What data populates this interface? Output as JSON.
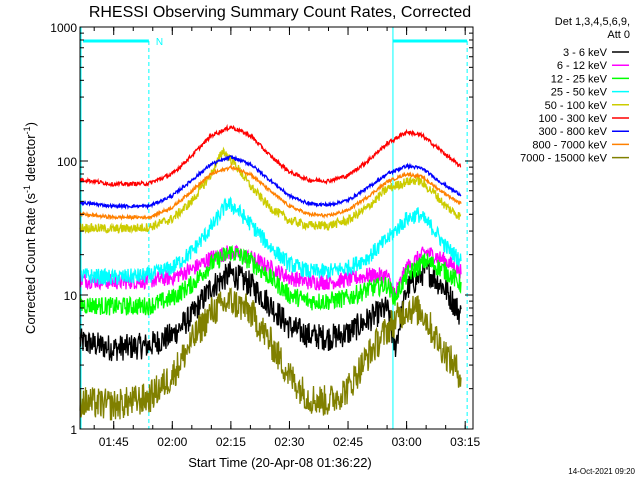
{
  "chart_data": {
    "type": "line",
    "title": "RHESSI Observing Summary Count Rates, Corrected",
    "xlabel": "Start Time (20-Apr-08 01:36:22)",
    "ylabel": "Corrected Count Rate (s",
    "ylabel_sup1": "-1",
    "ylabel_mid": " detector",
    "ylabel_sup2": "-1",
    "ylabel_end": ")",
    "yscale": "log",
    "ylim": [
      1,
      1000
    ],
    "y_ticks": [
      {
        "v": 1,
        "label": "1"
      },
      {
        "v": 10,
        "label": "10"
      },
      {
        "v": 100,
        "label": "100"
      },
      {
        "v": 1000,
        "label": "1000"
      }
    ],
    "xlim": [
      "01:36:22",
      "03:17:00"
    ],
    "x_ticks": [
      "01:45",
      "02:00",
      "02:15",
      "02:30",
      "02:45",
      "03:00",
      "03:15"
    ],
    "detectors_label": "Det 1,3,4,5,6,9,",
    "attenuator_label": "Att 0",
    "night_markers": [
      {
        "start": "01:36:22",
        "end": "01:54:00",
        "label": "N"
      }
    ],
    "other_intervals": [
      {
        "start": "02:56:30",
        "end": "03:15:30"
      }
    ],
    "footer_timestamp": "14-Oct-2021 09:20",
    "grid": false,
    "series": [
      {
        "name": "3 - 6 keV",
        "color": "#000000",
        "points": [
          [
            "01:36:22",
            4.5
          ],
          [
            "01:45",
            4.0
          ],
          [
            "01:54",
            4.2
          ],
          [
            "02:00",
            5.0
          ],
          [
            "02:05",
            7.0
          ],
          [
            "02:10",
            11.5
          ],
          [
            "02:15",
            14.5
          ],
          [
            "02:20",
            12.0
          ],
          [
            "02:25",
            8.5
          ],
          [
            "02:30",
            5.8
          ],
          [
            "02:35",
            5.0
          ],
          [
            "02:40",
            4.8
          ],
          [
            "02:45",
            5.2
          ],
          [
            "02:50",
            6.5
          ],
          [
            "02:55",
            8.0
          ],
          [
            "02:57",
            4.0
          ],
          [
            "03:00",
            11.0
          ],
          [
            "03:05",
            15.5
          ],
          [
            "03:10",
            11.0
          ],
          [
            "03:14",
            7.0
          ]
        ]
      },
      {
        "name": "6 - 12 keV",
        "color": "#ff00ff",
        "points": [
          [
            "01:36:22",
            13
          ],
          [
            "01:45",
            12.5
          ],
          [
            "01:54",
            12.8
          ],
          [
            "02:00",
            13.5
          ],
          [
            "02:05",
            15.5
          ],
          [
            "02:10",
            19
          ],
          [
            "02:15",
            21
          ],
          [
            "02:20",
            19
          ],
          [
            "02:25",
            16
          ],
          [
            "02:30",
            13.5
          ],
          [
            "02:35",
            12.5
          ],
          [
            "02:40",
            12.5
          ],
          [
            "02:45",
            13
          ],
          [
            "02:50",
            14
          ],
          [
            "02:55",
            14
          ],
          [
            "02:57",
            10
          ],
          [
            "03:00",
            16
          ],
          [
            "03:05",
            21
          ],
          [
            "03:10",
            18
          ],
          [
            "03:14",
            15
          ]
        ]
      },
      {
        "name": "12 - 25 keV",
        "color": "#00ff00",
        "points": [
          [
            "01:36:22",
            8.5
          ],
          [
            "01:45",
            8.2
          ],
          [
            "01:54",
            8.3
          ],
          [
            "02:00",
            9.5
          ],
          [
            "02:05",
            12
          ],
          [
            "02:10",
            17
          ],
          [
            "02:15",
            21
          ],
          [
            "02:20",
            18
          ],
          [
            "02:25",
            13.5
          ],
          [
            "02:30",
            10
          ],
          [
            "02:35",
            9
          ],
          [
            "02:40",
            9
          ],
          [
            "02:45",
            9.5
          ],
          [
            "02:50",
            11
          ],
          [
            "02:55",
            12
          ],
          [
            "02:57",
            9.5
          ],
          [
            "03:00",
            14
          ],
          [
            "03:05",
            18
          ],
          [
            "03:10",
            15
          ],
          [
            "03:14",
            12
          ]
        ]
      },
      {
        "name": "25 - 50 keV",
        "color": "#00ffff",
        "points": [
          [
            "01:36:22",
            14
          ],
          [
            "01:45",
            13.5
          ],
          [
            "01:54",
            14
          ],
          [
            "02:00",
            16
          ],
          [
            "02:05",
            21
          ],
          [
            "02:10",
            32
          ],
          [
            "02:14",
            48
          ],
          [
            "02:16",
            45
          ],
          [
            "02:20",
            34
          ],
          [
            "02:25",
            23
          ],
          [
            "02:30",
            17
          ],
          [
            "02:35",
            15
          ],
          [
            "02:40",
            15
          ],
          [
            "02:45",
            16
          ],
          [
            "02:50",
            19
          ],
          [
            "02:55",
            26
          ],
          [
            "03:00",
            37
          ],
          [
            "03:03",
            40
          ],
          [
            "03:07",
            31
          ],
          [
            "03:10",
            23
          ],
          [
            "03:14",
            18
          ]
        ]
      },
      {
        "name": "50 - 100 keV",
        "color": "#cccc00",
        "points": [
          [
            "01:36:22",
            32
          ],
          [
            "01:45",
            31
          ],
          [
            "01:54",
            32
          ],
          [
            "02:00",
            37
          ],
          [
            "02:05",
            50
          ],
          [
            "02:10",
            80
          ],
          [
            "02:13",
            120
          ],
          [
            "02:16",
            95
          ],
          [
            "02:20",
            65
          ],
          [
            "02:25",
            45
          ],
          [
            "02:30",
            36
          ],
          [
            "02:35",
            33
          ],
          [
            "02:40",
            33
          ],
          [
            "02:45",
            36
          ],
          [
            "02:50",
            45
          ],
          [
            "02:55",
            62
          ],
          [
            "03:00",
            70
          ],
          [
            "03:03",
            72
          ],
          [
            "03:07",
            58
          ],
          [
            "03:10",
            46
          ],
          [
            "03:14",
            38
          ]
        ]
      },
      {
        "name": "100 - 300 keV",
        "color": "#ff0000",
        "points": [
          [
            "01:36:22",
            73
          ],
          [
            "01:45",
            67
          ],
          [
            "01:54",
            68
          ],
          [
            "02:00",
            80
          ],
          [
            "02:05",
            110
          ],
          [
            "02:10",
            155
          ],
          [
            "02:15",
            180
          ],
          [
            "02:20",
            155
          ],
          [
            "02:25",
            110
          ],
          [
            "02:30",
            83
          ],
          [
            "02:35",
            72
          ],
          [
            "02:40",
            71
          ],
          [
            "02:45",
            78
          ],
          [
            "02:50",
            100
          ],
          [
            "02:55",
            135
          ],
          [
            "03:00",
            165
          ],
          [
            "03:04",
            155
          ],
          [
            "03:08",
            125
          ],
          [
            "03:12",
            100
          ],
          [
            "03:14",
            90
          ]
        ]
      },
      {
        "name": "300 - 800 keV",
        "color": "#0000ff",
        "points": [
          [
            "01:36:22",
            49
          ],
          [
            "01:45",
            46
          ],
          [
            "01:54",
            46
          ],
          [
            "02:00",
            55
          ],
          [
            "02:05",
            72
          ],
          [
            "02:10",
            95
          ],
          [
            "02:15",
            107
          ],
          [
            "02:20",
            95
          ],
          [
            "02:25",
            72
          ],
          [
            "02:30",
            55
          ],
          [
            "02:35",
            48
          ],
          [
            "02:40",
            47
          ],
          [
            "02:45",
            51
          ],
          [
            "02:50",
            63
          ],
          [
            "02:55",
            80
          ],
          [
            "03:00",
            92
          ],
          [
            "03:04",
            88
          ],
          [
            "03:08",
            72
          ],
          [
            "03:12",
            60
          ],
          [
            "03:14",
            56
          ]
        ]
      },
      {
        "name": "800 - 7000 keV",
        "color": "#ff8000",
        "points": [
          [
            "01:36:22",
            40
          ],
          [
            "01:45",
            38
          ],
          [
            "01:54",
            38
          ],
          [
            "02:00",
            45
          ],
          [
            "02:05",
            60
          ],
          [
            "02:10",
            80
          ],
          [
            "02:15",
            90
          ],
          [
            "02:20",
            80
          ],
          [
            "02:25",
            60
          ],
          [
            "02:30",
            46
          ],
          [
            "02:35",
            40
          ],
          [
            "02:40",
            39
          ],
          [
            "02:45",
            43
          ],
          [
            "02:50",
            54
          ],
          [
            "02:55",
            70
          ],
          [
            "03:00",
            80
          ],
          [
            "03:04",
            76
          ],
          [
            "03:08",
            62
          ],
          [
            "03:12",
            52
          ],
          [
            "03:14",
            48
          ]
        ]
      },
      {
        "name": "7000 - 15000 keV",
        "color": "#808000",
        "points": [
          [
            "01:36:22",
            1.6
          ],
          [
            "01:45",
            1.5
          ],
          [
            "01:54",
            1.7
          ],
          [
            "02:00",
            2.5
          ],
          [
            "02:05",
            4.5
          ],
          [
            "02:10",
            7.5
          ],
          [
            "02:15",
            9.0
          ],
          [
            "02:20",
            7.5
          ],
          [
            "02:25",
            4.5
          ],
          [
            "02:30",
            2.5
          ],
          [
            "02:35",
            1.7
          ],
          [
            "02:40",
            1.6
          ],
          [
            "02:45",
            2.0
          ],
          [
            "02:50",
            3.5
          ],
          [
            "02:55",
            5.5
          ],
          [
            "03:00",
            8.0
          ],
          [
            "03:04",
            7.5
          ],
          [
            "03:08",
            4.5
          ],
          [
            "03:12",
            3.0
          ],
          [
            "03:14",
            2.5
          ]
        ]
      }
    ]
  }
}
